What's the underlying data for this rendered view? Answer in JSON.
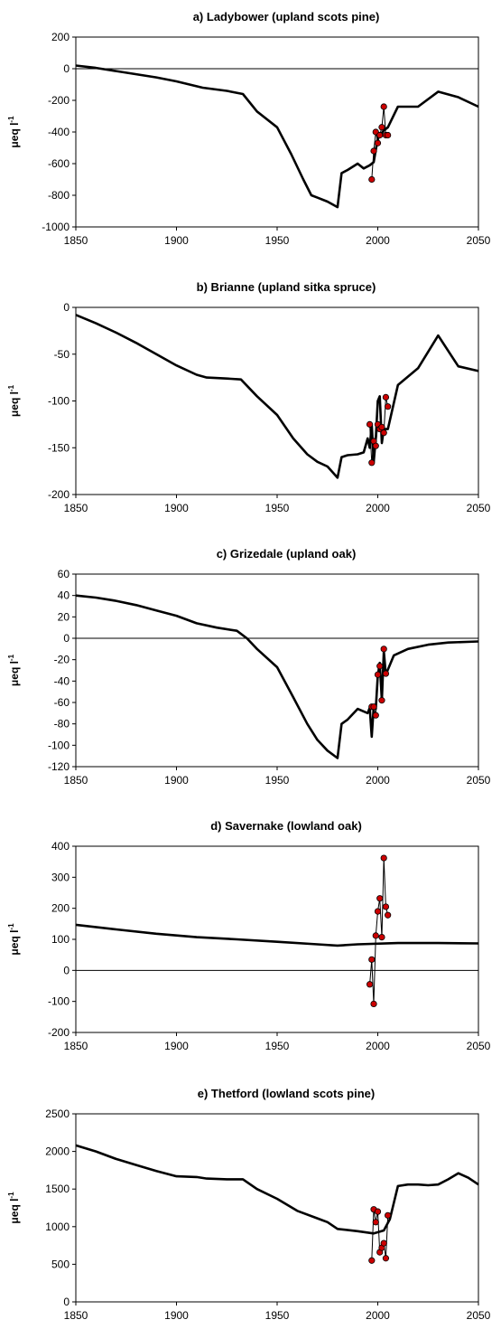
{
  "chart_data": [
    {
      "type": "line",
      "title": "a) Ladybower (upland scots pine)",
      "ylabel": "μeq l",
      "ylabel_sup": "-1",
      "xlim": [
        1850,
        2050
      ],
      "ylim": [
        -1000,
        200
      ],
      "xticks": [
        1850,
        1900,
        1950,
        2000,
        2050
      ],
      "yticks": [
        200,
        0,
        -200,
        -400,
        -600,
        -800,
        -1000
      ],
      "zero_line": true,
      "colors": {
        "model": "#000000",
        "observed_fill": "#cc0000",
        "observed_edge": "#000000"
      },
      "series": [
        {
          "kind": "model",
          "x": [
            1850,
            1860,
            1870,
            1880,
            1890,
            1900,
            1913,
            1925,
            1933,
            1940,
            1950,
            1957,
            1963,
            1967,
            1970,
            1975,
            1980,
            1982,
            1985,
            1990,
            1993,
            1996,
            1998,
            2000,
            2003,
            2005,
            2010,
            2020,
            2030,
            2040,
            2050
          ],
          "y": [
            20,
            5,
            -15,
            -35,
            -55,
            -80,
            -120,
            -140,
            -160,
            -270,
            -370,
            -540,
            -700,
            -800,
            -815,
            -840,
            -875,
            -660,
            -640,
            -600,
            -630,
            -610,
            -590,
            -440,
            -390,
            -370,
            -240,
            -240,
            -145,
            -180,
            -240
          ]
        },
        {
          "kind": "observed",
          "x": [
            1997,
            1998,
            1999,
            2000,
            2001,
            2002,
            2003,
            2004,
            2005
          ],
          "y": [
            -700,
            -520,
            -400,
            -470,
            -420,
            -370,
            -240,
            -420,
            -420
          ]
        }
      ]
    },
    {
      "type": "line",
      "title": "b) Brianne (upland sitka spruce)",
      "ylabel": "μeq l",
      "ylabel_sup": "-1",
      "xlim": [
        1850,
        2050
      ],
      "ylim": [
        -200,
        0
      ],
      "xticks": [
        1850,
        1900,
        1950,
        2000,
        2050
      ],
      "yticks": [
        0,
        -50,
        -100,
        -150,
        -200
      ],
      "zero_line": false,
      "colors": {
        "model": "#000000",
        "observed_fill": "#cc0000",
        "observed_edge": "#000000"
      },
      "series": [
        {
          "kind": "model",
          "x": [
            1850,
            1860,
            1870,
            1880,
            1890,
            1900,
            1910,
            1915,
            1925,
            1932,
            1940,
            1950,
            1958,
            1965,
            1970,
            1975,
            1980,
            1982,
            1985,
            1990,
            1993,
            1995,
            1996,
            1997,
            1998,
            1999,
            2000,
            2001,
            2002,
            2003,
            2005,
            2010,
            2020,
            2030,
            2040,
            2050
          ],
          "y": [
            -8,
            -17,
            -27,
            -38,
            -50,
            -62,
            -72,
            -75,
            -76,
            -77,
            -95,
            -115,
            -140,
            -157,
            -165,
            -170,
            -182,
            -160,
            -158,
            -157,
            -155,
            -140,
            -150,
            -125,
            -165,
            -140,
            -100,
            -95,
            -145,
            -130,
            -130,
            -83,
            -65,
            -30,
            -63,
            -68
          ]
        },
        {
          "kind": "observed",
          "x": [
            1996,
            1997,
            1998,
            1999,
            2000,
            2001,
            2002,
            2003,
            2004,
            2005
          ],
          "y": [
            -125,
            -166,
            -143,
            -148,
            -125,
            -130,
            -128,
            -134,
            -96,
            -106
          ]
        }
      ]
    },
    {
      "type": "line",
      "title": "c) Grizedale (upland oak)",
      "ylabel": "μeq l",
      "ylabel_sup": "-1",
      "xlim": [
        1850,
        2050
      ],
      "ylim": [
        -120,
        60
      ],
      "xticks": [
        1850,
        1900,
        1950,
        2000,
        2050
      ],
      "yticks": [
        60,
        40,
        20,
        0,
        -20,
        -40,
        -60,
        -80,
        -100,
        -120
      ],
      "zero_line": true,
      "colors": {
        "model": "#000000",
        "observed_fill": "#cc0000",
        "observed_edge": "#000000"
      },
      "series": [
        {
          "kind": "model",
          "x": [
            1850,
            1860,
            1870,
            1880,
            1890,
            1900,
            1910,
            1920,
            1930,
            1935,
            1940,
            1950,
            1958,
            1965,
            1970,
            1975,
            1980,
            1982,
            1985,
            1990,
            1995,
            1996,
            1997,
            1998,
            1999,
            2000,
            2001,
            2002,
            2003,
            2004,
            2008,
            2015,
            2025,
            2035,
            2050
          ],
          "y": [
            40,
            38,
            35,
            31,
            26,
            21,
            14,
            10,
            7,
            0,
            -10,
            -27,
            -55,
            -80,
            -95,
            -105,
            -112,
            -80,
            -76,
            -66,
            -70,
            -65,
            -92,
            -64,
            -66,
            -35,
            -23,
            -58,
            -12,
            -34,
            -16,
            -10,
            -6,
            -4,
            -3
          ]
        },
        {
          "kind": "observed",
          "x": [
            1997,
            1998,
            1999,
            2000,
            2001,
            2002,
            2003,
            2004
          ],
          "y": [
            -64,
            -64,
            -72,
            -34,
            -26,
            -58,
            -10,
            -33
          ]
        }
      ]
    },
    {
      "type": "line",
      "title": "d) Savernake (lowland oak)",
      "ylabel": "μeq l",
      "ylabel_sup": "-1",
      "xlim": [
        1850,
        2050
      ],
      "ylim": [
        -200,
        400
      ],
      "xticks": [
        1850,
        1900,
        1950,
        2000,
        2050
      ],
      "yticks": [
        400,
        300,
        200,
        100,
        0,
        -100,
        -200
      ],
      "zero_line": true,
      "colors": {
        "model": "#000000",
        "observed_fill": "#cc0000",
        "observed_edge": "#000000"
      },
      "series": [
        {
          "kind": "model",
          "x": [
            1850,
            1870,
            1890,
            1910,
            1930,
            1950,
            1970,
            1980,
            1990,
            2010,
            2030,
            2050
          ],
          "y": [
            147,
            132,
            118,
            107,
            100,
            92,
            84,
            80,
            84,
            88,
            88,
            87
          ]
        },
        {
          "kind": "observed",
          "x": [
            1996,
            1997,
            1998,
            1999,
            2000,
            2001,
            2002,
            2003,
            2004,
            2005
          ],
          "y": [
            -45,
            35,
            -108,
            112,
            190,
            232,
            107,
            362,
            205,
            178
          ]
        }
      ]
    },
    {
      "type": "line",
      "title": "e) Thetford (lowland scots pine)",
      "ylabel": "μeq l",
      "ylabel_sup": "-1",
      "xlim": [
        1850,
        2050
      ],
      "ylim": [
        0,
        2500
      ],
      "xticks": [
        1850,
        1900,
        1950,
        2000,
        2050
      ],
      "yticks": [
        2500,
        2000,
        1500,
        1000,
        500,
        0
      ],
      "zero_line": false,
      "colors": {
        "model": "#000000",
        "observed_fill": "#cc0000",
        "observed_edge": "#000000"
      },
      "series": [
        {
          "kind": "model",
          "x": [
            1850,
            1860,
            1870,
            1880,
            1890,
            1900,
            1910,
            1915,
            1925,
            1933,
            1940,
            1950,
            1960,
            1970,
            1975,
            1980,
            1990,
            1998,
            2003,
            2006,
            2010,
            2015,
            2020,
            2025,
            2030,
            2035,
            2040,
            2045,
            2050
          ],
          "y": [
            2080,
            2000,
            1900,
            1820,
            1740,
            1670,
            1660,
            1640,
            1630,
            1630,
            1500,
            1370,
            1210,
            1110,
            1060,
            970,
            940,
            910,
            950,
            1100,
            1540,
            1560,
            1560,
            1550,
            1560,
            1630,
            1710,
            1650,
            1560
          ]
        },
        {
          "kind": "observed",
          "x": [
            1997,
            1998,
            1999,
            2000,
            2001,
            2002,
            2003,
            2004,
            2005
          ],
          "y": [
            550,
            1230,
            1060,
            1200,
            660,
            720,
            780,
            580,
            1150
          ]
        }
      ]
    }
  ]
}
